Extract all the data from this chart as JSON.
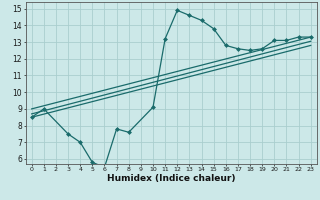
{
  "title": "",
  "xlabel": "Humidex (Indice chaleur)",
  "bg_color": "#cce8e8",
  "grid_color": "#aacece",
  "line_color": "#1a6b6b",
  "xlim": [
    -0.5,
    23.5
  ],
  "ylim": [
    5.7,
    15.4
  ],
  "xticks": [
    0,
    1,
    2,
    3,
    4,
    5,
    6,
    7,
    8,
    9,
    10,
    11,
    12,
    13,
    14,
    15,
    16,
    17,
    18,
    19,
    20,
    21,
    22,
    23
  ],
  "yticks": [
    6,
    7,
    8,
    9,
    10,
    11,
    12,
    13,
    14,
    15
  ],
  "line1_x": [
    0,
    1,
    3,
    4,
    5,
    6,
    7,
    8,
    10,
    11,
    12,
    13,
    14,
    15,
    16,
    17,
    18,
    19,
    20,
    21,
    22,
    23
  ],
  "line1_y": [
    8.5,
    9.0,
    7.5,
    7.0,
    5.8,
    5.5,
    7.8,
    7.6,
    9.1,
    13.2,
    14.9,
    14.6,
    14.3,
    13.8,
    12.8,
    12.6,
    12.5,
    12.6,
    13.1,
    13.1,
    13.3,
    13.3
  ],
  "line2_x": [
    0,
    23
  ],
  "line2_y": [
    9.0,
    13.3
  ],
  "line3_x": [
    0,
    23
  ],
  "line3_y": [
    8.5,
    12.8
  ],
  "line4_x": [
    0,
    23
  ],
  "line4_y": [
    8.7,
    13.05
  ],
  "marker": "D",
  "markersize": 2.5,
  "linewidth": 0.9
}
